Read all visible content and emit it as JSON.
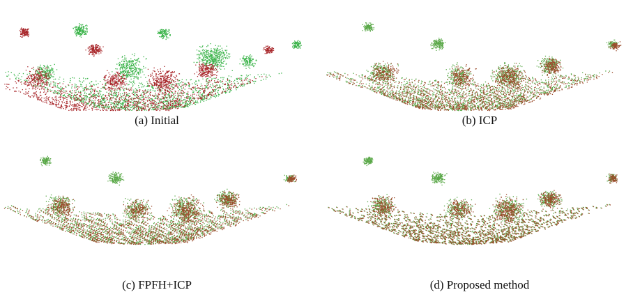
{
  "figure": {
    "panels": [
      {
        "caption": "(a) Initial"
      },
      {
        "caption": "(b) ICP"
      },
      {
        "caption": "(c) FPFH+ICP"
      },
      {
        "caption": "(d) Proposed method"
      }
    ]
  }
}
